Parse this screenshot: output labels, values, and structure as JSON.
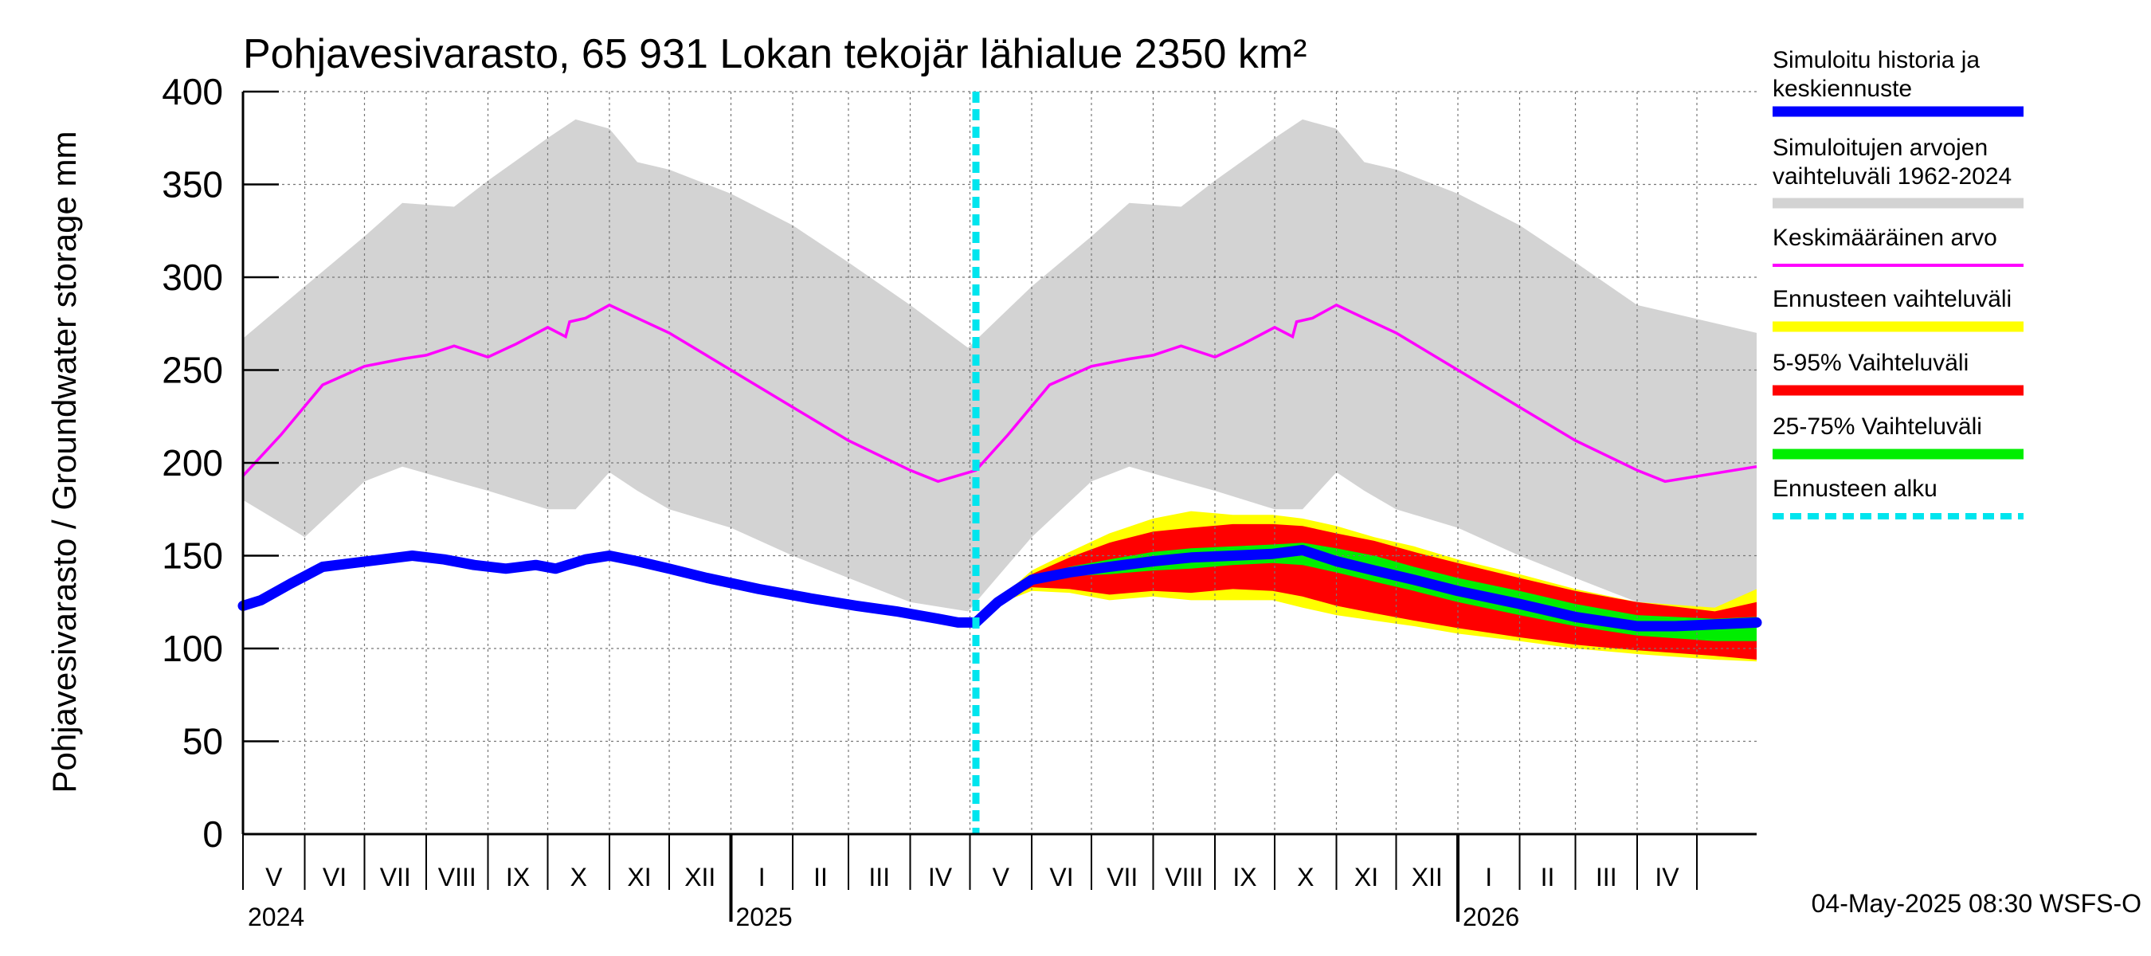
{
  "chart_data": {
    "type": "area",
    "title": "Pohjavesivarasto, 65 931 Lokan tekojär lähialue 2350 km²",
    "ylabel": "Pohjavesivarasto / Groundwater storage   mm",
    "ylim": [
      0,
      400
    ],
    "yticks": [
      0,
      50,
      100,
      150,
      200,
      250,
      300,
      350,
      400
    ],
    "grid": true,
    "xrange": [
      "2024-05-01",
      "2026-05-31"
    ],
    "forecast_start": "2025-05-04",
    "timestamp": "04-May-2025 08:30 WSFS-O",
    "months": [
      {
        "label": "V",
        "start": "2024-05-01"
      },
      {
        "label": "VI",
        "start": "2024-06-01"
      },
      {
        "label": "VII",
        "start": "2024-07-01"
      },
      {
        "label": "VIII",
        "start": "2024-08-01"
      },
      {
        "label": "IX",
        "start": "2024-09-01"
      },
      {
        "label": "X",
        "start": "2024-10-01"
      },
      {
        "label": "XI",
        "start": "2024-11-01"
      },
      {
        "label": "XII",
        "start": "2024-12-01"
      },
      {
        "label": "I",
        "start": "2025-01-01"
      },
      {
        "label": "II",
        "start": "2025-02-01"
      },
      {
        "label": "III",
        "start": "2025-03-01"
      },
      {
        "label": "IV",
        "start": "2025-04-01"
      },
      {
        "label": "V",
        "start": "2025-05-01"
      },
      {
        "label": "VI",
        "start": "2025-06-01"
      },
      {
        "label": "VII",
        "start": "2025-07-01"
      },
      {
        "label": "VIII",
        "start": "2025-08-01"
      },
      {
        "label": "IX",
        "start": "2025-09-01"
      },
      {
        "label": "X",
        "start": "2025-10-01"
      },
      {
        "label": "XI",
        "start": "2025-11-01"
      },
      {
        "label": "XII",
        "start": "2025-12-01"
      },
      {
        "label": "I",
        "start": "2026-01-01"
      },
      {
        "label": "II",
        "start": "2026-02-01"
      },
      {
        "label": "III",
        "start": "2026-03-01"
      },
      {
        "label": "IV",
        "start": "2026-04-01"
      }
    ],
    "month_end": "2026-05-01",
    "years": [
      {
        "label": "2024",
        "at": "2024-05-01"
      },
      {
        "label": "2025",
        "at": "2025-01-01"
      },
      {
        "label": "2026",
        "at": "2026-01-01"
      }
    ],
    "legend": [
      {
        "id": "hist",
        "label": [
          "Simuloitu historia ja",
          "keskiennuste"
        ],
        "color": "#0000ff",
        "style": "solid"
      },
      {
        "id": "range",
        "label": [
          "Simuloitujen arvojen",
          "vaihteluväli 1962-2024"
        ],
        "color": "#d3d3d3",
        "style": "solid"
      },
      {
        "id": "mean",
        "label": [
          "Keskimääräinen arvo"
        ],
        "color": "#ff00ff",
        "style": "thin"
      },
      {
        "id": "fc_range",
        "label": [
          "Ennusteen vaihteluväli"
        ],
        "color": "#ffff00",
        "style": "solid"
      },
      {
        "id": "p5_95",
        "label": [
          "5-95% Vaihteluväli"
        ],
        "color": "#ff0000",
        "style": "solid"
      },
      {
        "id": "p25_75",
        "label": [
          "25-75% Vaihteluväli"
        ],
        "color": "#00ee00",
        "style": "solid"
      },
      {
        "id": "fc_start",
        "label": [
          "Ennusteen alku"
        ],
        "color": "#00e5ee",
        "style": "dashed"
      }
    ],
    "series": {
      "range_band": {
        "name": "Simuloitujen arvojen vaihteluväli 1962-2024",
        "x": [
          "2024-05-01",
          "2024-06-01",
          "2024-07-01",
          "2024-07-20",
          "2024-08-15",
          "2024-09-01",
          "2024-10-01",
          "2024-10-15",
          "2024-11-01",
          "2024-11-15",
          "2024-12-01",
          "2025-01-01",
          "2025-02-01",
          "2025-03-01",
          "2025-04-01",
          "2025-04-30",
          "2025-06-01",
          "2025-07-01",
          "2025-07-20",
          "2025-08-15",
          "2025-09-01",
          "2025-10-01",
          "2025-10-15",
          "2025-11-01",
          "2025-11-15",
          "2025-12-01",
          "2026-01-01",
          "2026-02-01",
          "2026-03-01",
          "2026-04-01",
          "2026-05-31"
        ],
        "upper": [
          267,
          295,
          322,
          340,
          338,
          352,
          375,
          385,
          380,
          362,
          358,
          345,
          328,
          308,
          285,
          262,
          295,
          322,
          340,
          338,
          352,
          375,
          385,
          380,
          362,
          358,
          345,
          328,
          308,
          285,
          270
        ],
        "lower": [
          180,
          160,
          190,
          198,
          190,
          185,
          175,
          175,
          195,
          185,
          175,
          165,
          150,
          138,
          125,
          120,
          160,
          190,
          198,
          190,
          185,
          175,
          175,
          195,
          185,
          175,
          165,
          150,
          138,
          125,
          120
        ]
      },
      "mean": {
        "name": "Keskimääräinen arvo",
        "x": [
          "2024-05-01",
          "2024-05-20",
          "2024-06-10",
          "2024-07-01",
          "2024-07-20",
          "2024-08-01",
          "2024-08-15",
          "2024-09-01",
          "2024-09-15",
          "2024-10-01",
          "2024-10-10",
          "2024-10-12",
          "2024-10-20",
          "2024-11-01",
          "2024-11-15",
          "2024-12-01",
          "2025-01-01",
          "2025-02-01",
          "2025-03-01",
          "2025-04-01",
          "2025-04-15",
          "2025-05-04",
          "2025-05-20",
          "2025-06-10",
          "2025-07-01",
          "2025-07-20",
          "2025-08-01",
          "2025-08-15",
          "2025-09-01",
          "2025-09-15",
          "2025-10-01",
          "2025-10-10",
          "2025-10-12",
          "2025-10-20",
          "2025-11-01",
          "2025-11-15",
          "2025-12-01",
          "2026-01-01",
          "2026-02-01",
          "2026-03-01",
          "2026-04-01",
          "2026-04-15",
          "2026-05-31"
        ],
        "values": [
          193,
          215,
          242,
          252,
          256,
          258,
          263,
          257,
          264,
          273,
          268,
          276,
          278,
          285,
          278,
          270,
          250,
          230,
          212,
          196,
          190,
          196,
          215,
          242,
          252,
          256,
          258,
          263,
          257,
          264,
          273,
          268,
          276,
          278,
          285,
          278,
          270,
          250,
          230,
          212,
          196,
          190,
          198
        ]
      },
      "history": {
        "name": "Simuloitu historia ja keskiennuste",
        "x": [
          "2024-05-01",
          "2024-05-10",
          "2024-05-25",
          "2024-06-10",
          "2024-06-25",
          "2024-07-10",
          "2024-07-25",
          "2024-08-10",
          "2024-08-25",
          "2024-09-10",
          "2024-09-25",
          "2024-10-05",
          "2024-10-20",
          "2024-11-01",
          "2024-11-15",
          "2024-12-01",
          "2024-12-20",
          "2025-01-15",
          "2025-02-10",
          "2025-03-05",
          "2025-03-25",
          "2025-04-15",
          "2025-04-25",
          "2025-05-04"
        ],
        "values": [
          123,
          126,
          135,
          144,
          146,
          148,
          150,
          148,
          145,
          143,
          145,
          143,
          148,
          150,
          147,
          143,
          138,
          132,
          127,
          123,
          120,
          116,
          114,
          114
        ]
      },
      "forecast_median": {
        "name": "Simuloitu historia ja keskiennuste",
        "x": [
          "2025-05-04",
          "2025-05-15",
          "2025-06-01",
          "2025-06-20",
          "2025-07-10",
          "2025-08-01",
          "2025-08-20",
          "2025-09-10",
          "2025-09-30",
          "2025-10-15",
          "2025-11-01",
          "2025-11-20",
          "2025-12-10",
          "2026-01-01",
          "2026-02-01",
          "2026-03-01",
          "2026-04-01",
          "2026-04-20",
          "2026-05-31"
        ],
        "values": [
          114,
          125,
          137,
          141,
          144,
          147,
          149,
          150,
          151,
          153,
          147,
          142,
          137,
          131,
          124,
          117,
          112,
          112,
          114
        ]
      },
      "fc_range_band": {
        "name": "Ennusteen vaihteluväli",
        "x": [
          "2025-05-04",
          "2025-05-15",
          "2025-06-01",
          "2025-06-20",
          "2025-07-10",
          "2025-08-01",
          "2025-08-20",
          "2025-09-10",
          "2025-09-30",
          "2025-10-15",
          "2025-11-01",
          "2025-11-20",
          "2025-12-10",
          "2026-01-01",
          "2026-02-01",
          "2026-03-01",
          "2026-04-01",
          "2026-05-10",
          "2026-05-31"
        ],
        "upper": [
          114,
          126,
          142,
          152,
          162,
          170,
          174,
          172,
          172,
          170,
          166,
          160,
          155,
          148,
          140,
          132,
          125,
          122,
          132
        ],
        "lower": [
          114,
          124,
          131,
          130,
          126,
          128,
          126,
          126,
          126,
          122,
          118,
          115,
          112,
          108,
          104,
          100,
          97,
          94,
          93
        ]
      },
      "p5_95_band": {
        "name": "5-95% Vaihteluväli",
        "x": [
          "2025-05-04",
          "2025-05-15",
          "2025-06-01",
          "2025-06-20",
          "2025-07-10",
          "2025-08-01",
          "2025-08-20",
          "2025-09-10",
          "2025-09-30",
          "2025-10-15",
          "2025-11-01",
          "2025-11-20",
          "2025-12-10",
          "2026-01-01",
          "2026-02-01",
          "2026-03-01",
          "2026-04-01",
          "2026-05-10",
          "2026-05-31"
        ],
        "upper": [
          114,
          125,
          140,
          149,
          157,
          163,
          165,
          167,
          167,
          166,
          162,
          158,
          152,
          146,
          138,
          131,
          125,
          120,
          125
        ],
        "lower": [
          114,
          124,
          133,
          132,
          129,
          131,
          130,
          132,
          131,
          128,
          123,
          119,
          115,
          111,
          106,
          102,
          99,
          96,
          94
        ]
      },
      "p25_75_band": {
        "name": "25-75% Vaihteluväli",
        "x": [
          "2025-05-04",
          "2025-05-15",
          "2025-06-01",
          "2025-06-20",
          "2025-07-10",
          "2025-08-01",
          "2025-08-20",
          "2025-09-10",
          "2025-09-30",
          "2025-10-15",
          "2025-11-01",
          "2025-11-20",
          "2025-12-10",
          "2026-01-01",
          "2026-02-01",
          "2026-03-01",
          "2026-04-01",
          "2026-05-10",
          "2026-05-31"
        ],
        "upper": [
          114,
          125,
          138,
          144,
          148,
          152,
          154,
          155,
          156,
          157,
          154,
          150,
          144,
          138,
          131,
          124,
          118,
          116,
          117
        ],
        "lower": [
          114,
          124,
          136,
          139,
          140,
          142,
          143,
          145,
          146,
          145,
          141,
          136,
          131,
          125,
          118,
          112,
          107,
          104,
          104
        ]
      }
    }
  }
}
